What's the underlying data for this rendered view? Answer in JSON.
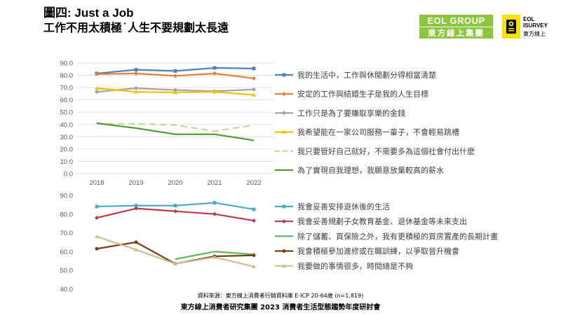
{
  "header": {
    "title": "圖四: Just a Job",
    "subtitle": "工作不用太積極˙人生不要規劃太長遠"
  },
  "logos": {
    "eol_top": "EOL GROUP",
    "eol_bottom": "東方線上集團",
    "survey_line1": "EOL",
    "survey_line2": "ISURVEY",
    "survey_line3": "東方線上",
    "eol_color": "#8cc63f",
    "survey_color": "#f5e400"
  },
  "footer": {
    "source": "資料來源：東方線上消費者行銷資料庫 E-ICP 20-64歲 (n=1,819)",
    "event": "東方線上消費者研究集團 2023 消費者生活型態趨勢年度研討會"
  },
  "chart_data": [
    {
      "type": "line",
      "categories": [
        "2018",
        "2019",
        "2020",
        "2021",
        "2022"
      ],
      "y_ticks": [
        "90.0",
        "80.0",
        "70.0",
        "60.0",
        "50.0",
        "40.0",
        "30.0",
        "20.0",
        "10.0",
        "0.0"
      ],
      "ylim": [
        0,
        90
      ],
      "grid": true,
      "legend_position": "right",
      "series": [
        {
          "name": "我的生活中，工作與休閒劃分得相當清楚",
          "values": [
            81.5,
            84.5,
            83.5,
            86.0,
            85.5
          ],
          "color": "#4e81bd",
          "marker": "square",
          "dash": false
        },
        {
          "name": "安定的工作與結婚生子是我的人生目標",
          "values": [
            81.0,
            81.5,
            79.5,
            81.5,
            77.5
          ],
          "color": "#e97a32",
          "marker": "diamond",
          "dash": false
        },
        {
          "name": "工作只是為了要賺取享樂的金錢",
          "values": [
            66.5,
            69.5,
            68.0,
            67.0,
            68.5
          ],
          "color": "#a5a5a5",
          "marker": "circle",
          "dash": false
        },
        {
          "name": "我希望能在一家公司服務一輩子，不會輕易跳槽",
          "values": [
            69.5,
            66.5,
            66.0,
            66.5,
            64.0
          ],
          "color": "#f5c200",
          "marker": "triangle",
          "dash": false
        },
        {
          "name": "我只要管好自己就好，不需要多為這個社會付出什麼",
          "values": [
            40.5,
            40.5,
            39.5,
            34.5,
            39.5
          ],
          "color": "#c4d79b",
          "marker": "none",
          "dash": true
        },
        {
          "name": "為了實現自我理想，我願意放棄較高的薪水",
          "values": [
            41.0,
            37.0,
            32.0,
            32.0,
            27.0
          ],
          "color": "#4f9a35",
          "marker": "none",
          "dash": false
        }
      ]
    },
    {
      "type": "line",
      "categories": [
        "2018",
        "2019",
        "2020",
        "2021",
        "2022"
      ],
      "y_ticks": [
        "90.0",
        "80.0",
        "70.0",
        "60.0",
        "50.0",
        "40.0"
      ],
      "ylim": [
        40,
        90
      ],
      "grid": false,
      "legend_position": "right",
      "series": [
        {
          "name": "我會妥善安排退休後的生活",
          "values": [
            84.0,
            84.5,
            84.5,
            86.0,
            82.5
          ],
          "color": "#4bacc6",
          "marker": "square",
          "dash": false
        },
        {
          "name": "我會妥善規劃子女教育基金、退休基金等未來支出",
          "values": [
            78.0,
            83.0,
            81.5,
            80.0,
            76.5
          ],
          "color": "#c0384c",
          "marker": "diamond",
          "dash": false
        },
        {
          "name": "除了儲蓄、買保險之外，我有更積極的買房置產的長期計畫",
          "values": [
            null,
            null,
            56.0,
            60.0,
            58.5
          ],
          "color": "#5db85d",
          "marker": "none",
          "dash": false
        },
        {
          "name": "我會積極參加進修或在職訓練，以爭取晉升機會",
          "values": [
            61.5,
            65.0,
            53.5,
            57.5,
            58.0
          ],
          "color": "#7b3f16",
          "marker": "circle",
          "dash": false
        },
        {
          "name": "我要做的事情很多，時間總是不夠",
          "values": [
            68.0,
            61.0,
            53.5,
            57.0,
            52.0
          ],
          "color": "#c9c290",
          "marker": "triangle",
          "dash": false
        }
      ]
    }
  ]
}
